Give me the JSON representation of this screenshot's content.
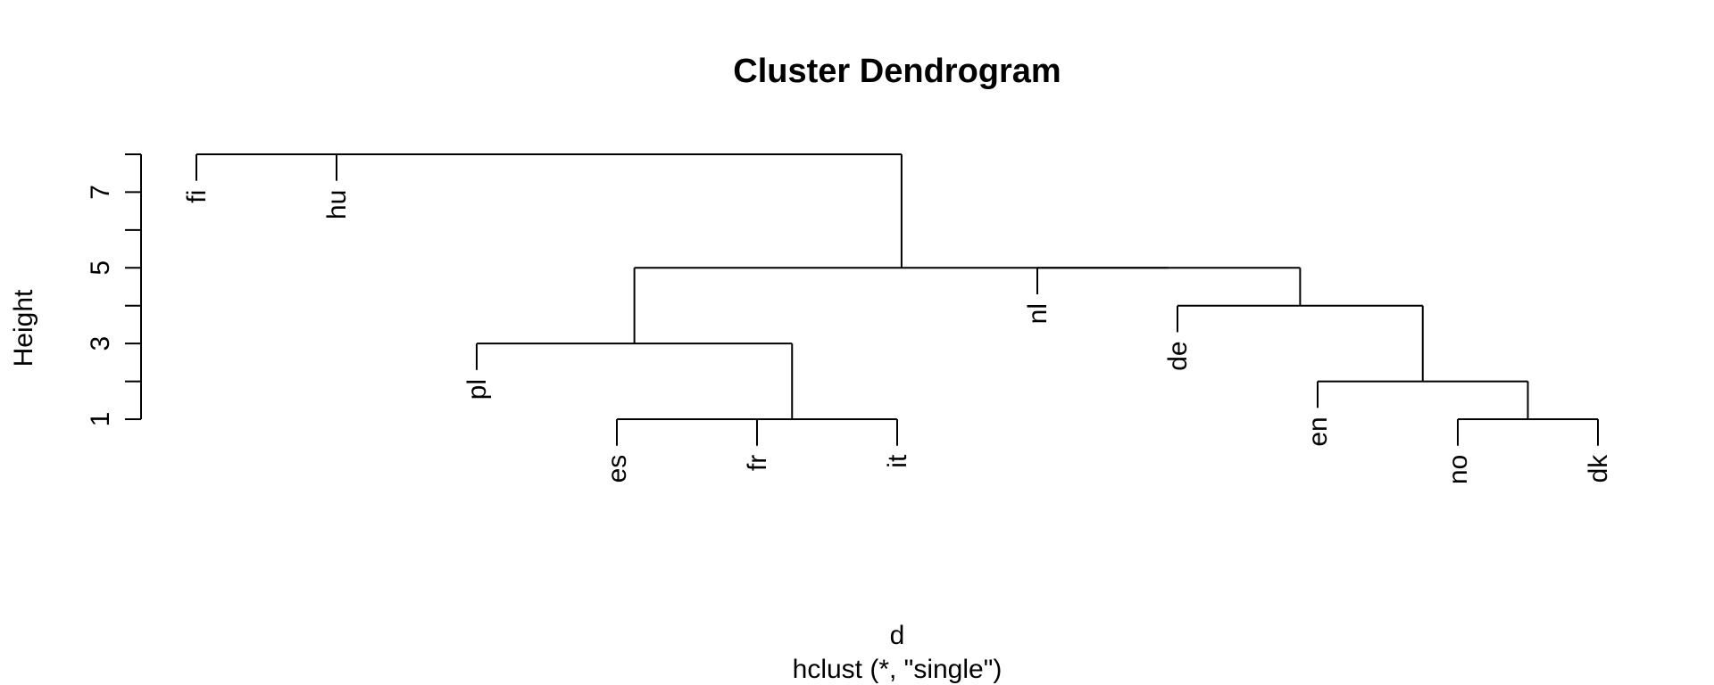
{
  "chart_data": {
    "type": "dendrogram",
    "title": "Cluster Dendrogram",
    "ylabel": "Height",
    "xlabel": "d",
    "subtitle": "hclust (*, \"single\")",
    "ylim": [
      1,
      8
    ],
    "yticks": [
      1,
      2,
      3,
      4,
      5,
      6,
      7,
      8
    ],
    "ytick_labels": [
      "1",
      "3",
      "5",
      "7"
    ],
    "leaves": [
      "fi",
      "hu",
      "pl",
      "es",
      "fr",
      "it",
      "nl",
      "de",
      "en",
      "no",
      "dk"
    ],
    "merges": [
      {
        "left": "es",
        "right": "fr",
        "height": 1
      },
      {
        "left": "es+fr",
        "right": "it",
        "height": 1
      },
      {
        "left": "no",
        "right": "dk",
        "height": 1
      },
      {
        "left": "en",
        "right": "no+dk",
        "height": 2
      },
      {
        "left": "pl",
        "right": "es+fr+it",
        "height": 3
      },
      {
        "left": "de",
        "right": "en+no+dk",
        "height": 4
      },
      {
        "left": "nl",
        "right": "de+en+no+dk",
        "height": 5
      },
      {
        "left": "pl+es+fr+it",
        "right": "nl+de+en+no+dk",
        "height": 5
      },
      {
        "left": "fi",
        "right": "hu",
        "height": 8
      },
      {
        "left": "fi+hu",
        "right": "rest",
        "height": 8
      }
    ]
  }
}
